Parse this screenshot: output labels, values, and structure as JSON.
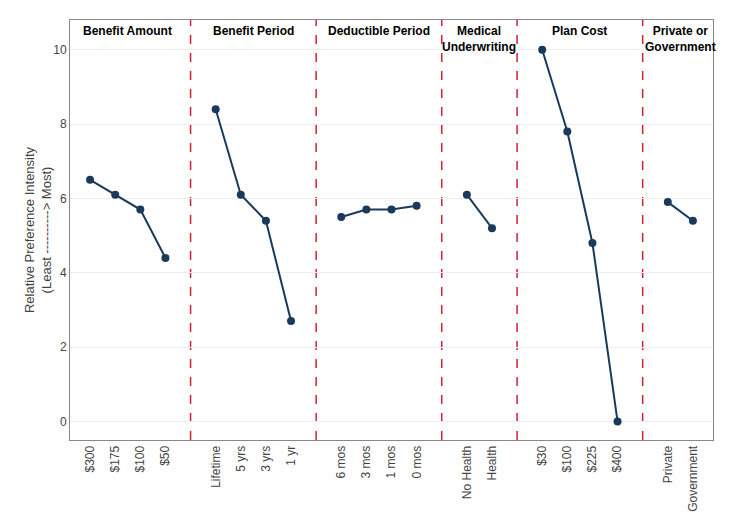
{
  "chart_data": {
    "type": "line",
    "categories": [
      "$300",
      "$175",
      "$100",
      "$50",
      null,
      "Lifetime",
      "5 yrs",
      "3 yrs",
      "1 yr",
      null,
      "6 mos",
      "3 mos",
      "1 mos",
      "0 mos",
      null,
      "No Health",
      "Health",
      null,
      "$30",
      "$100",
      "$225",
      "$400",
      null,
      "Private",
      "Government"
    ],
    "values": [
      6.5,
      6.1,
      5.7,
      4.4,
      null,
      8.4,
      6.1,
      5.4,
      2.7,
      null,
      5.5,
      5.7,
      5.7,
      5.8,
      null,
      6.1,
      5.2,
      null,
      10.0,
      7.8,
      4.8,
      0.0,
      null,
      5.9,
      5.4
    ],
    "annotations": [
      "Benefit Amount",
      "Benefit Period",
      "Deductible Period",
      "Medical\nUnderwriting",
      "Plan Cost",
      "Private or\nGovernment"
    ],
    "ylabel": "Relative Preference Intensity\n(Least ----------> Most)",
    "ylim": [
      -0.5,
      10.8
    ],
    "yticks": [
      0,
      2,
      4,
      6,
      8,
      10
    ],
    "color": "#1a3a5c",
    "marker": "circle",
    "line_style": "solid",
    "grid": true
  }
}
